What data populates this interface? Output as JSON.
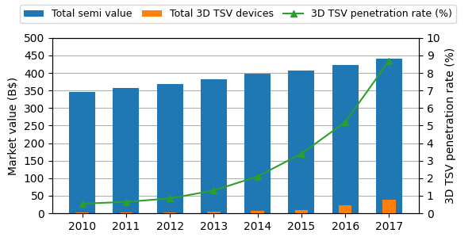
{
  "chart_data": {
    "type": "bar",
    "categories": [
      "2010",
      "2011",
      "2012",
      "2013",
      "2014",
      "2015",
      "2016",
      "2017"
    ],
    "series": [
      {
        "name": "Total semi value",
        "type": "bar",
        "values": [
          345,
          357,
          368,
          381,
          398,
          408,
          422,
          440
        ]
      },
      {
        "name": "Total 3D TSV devices",
        "type": "bar",
        "values": [
          2,
          2,
          3,
          5,
          6,
          10,
          22,
          38
        ]
      },
      {
        "name": "3D TSV penetration rate (%)",
        "type": "line",
        "axis": "y2",
        "marker": "^",
        "values": [
          0.55,
          0.65,
          0.85,
          1.3,
          2.1,
          3.4,
          5.2,
          8.7
        ]
      }
    ],
    "ylabel": "Market value (B$)",
    "y2label": "3D TSV penetration rate (%)",
    "ylim": [
      0,
      500
    ],
    "yticks": [
      0,
      50,
      100,
      150,
      200,
      250,
      300,
      350,
      400,
      450,
      500
    ],
    "y2lim": [
      0,
      10
    ],
    "y2ticks": [
      0,
      1,
      2,
      3,
      4,
      5,
      6,
      7,
      8,
      9,
      10
    ],
    "grid": true,
    "legend": "upper center"
  }
}
